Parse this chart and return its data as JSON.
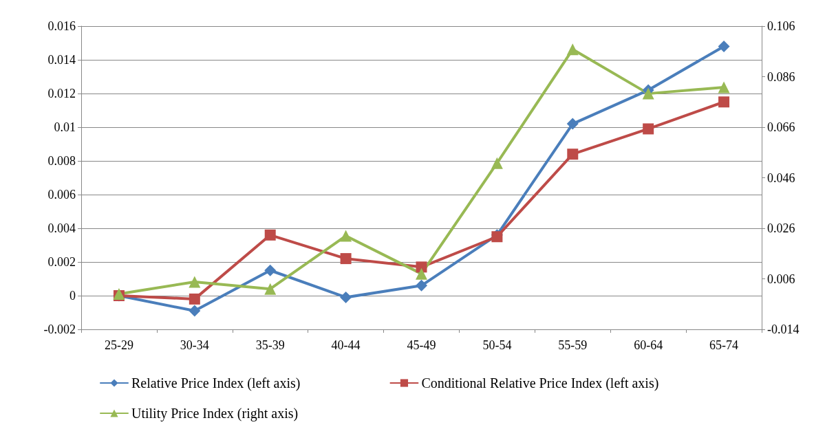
{
  "chart_data": {
    "type": "line",
    "categories": [
      "25-29",
      "30-34",
      "35-39",
      "40-44",
      "45-49",
      "50-54",
      "55-59",
      "60-64",
      "65-74"
    ],
    "series": [
      {
        "name": "Relative Price Index (left axis)",
        "color": "#4a7ebb",
        "marker": "diamond",
        "values": [
          0,
          -0.0009,
          0.0015,
          -0.0001,
          0.0006,
          0.0036,
          0.0102,
          0.0122,
          0.0148
        ]
      },
      {
        "name": "Conditional Relative Price Index (left axis)",
        "color": "#be4b48",
        "marker": "square",
        "values": [
          0,
          -0.0002,
          0.0036,
          0.0022,
          0.0017,
          0.0035,
          0.0084,
          0.0099,
          0.0115
        ]
      },
      {
        "name": "Utility Price Index (right axis)",
        "color": "#98b954",
        "marker": "triangle",
        "axis": "y2",
        "values": [
          0,
          0.0048,
          0.002,
          0.023,
          0.008,
          0.0518,
          0.0968,
          0.0793,
          0.0818
        ]
      }
    ],
    "ylim": [
      -0.002,
      0.016
    ],
    "yticks": [
      -0.002,
      0,
      0.002,
      0.004,
      0.006,
      0.008,
      0.01,
      0.012,
      0.014,
      0.016
    ],
    "y2lim": [
      -0.014,
      0.106
    ],
    "y2ticks": [
      -0.014,
      0.006,
      0.026,
      0.046,
      0.066,
      0.086,
      0.106
    ],
    "grid": "y",
    "legend": "bottom",
    "line_style": "solid"
  }
}
